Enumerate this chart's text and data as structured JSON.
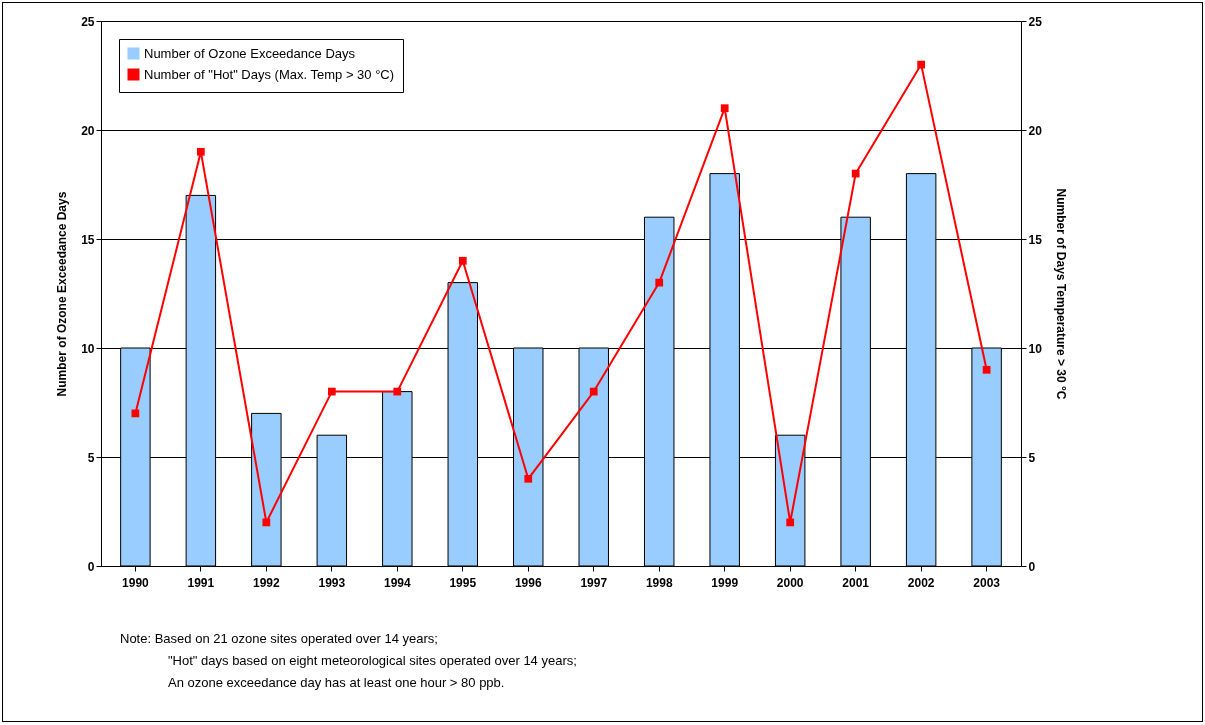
{
  "chart_data": {
    "type": "bar",
    "ylabel": "Number of Ozone Exceedance Days",
    "y2label": "Number of Days Temperature > 30 °C",
    "categories": [
      "1990",
      "1991",
      "1992",
      "1993",
      "1994",
      "1995",
      "1996",
      "1997",
      "1998",
      "1999",
      "2000",
      "2001",
      "2002",
      "2003"
    ],
    "series": [
      {
        "name": "Number of Ozone Exceedance Days",
        "color": "#99ccff",
        "values": [
          10,
          17,
          7,
          6,
          8,
          13,
          10,
          10,
          16,
          18,
          6,
          16,
          18,
          10
        ]
      },
      {
        "name": "Number of \"Hot\" Days (Max. Temp > 30 °C)",
        "color": "#ff0000",
        "type": "line",
        "axis": "y2",
        "values": [
          7,
          19,
          2,
          8,
          8,
          14,
          4,
          8,
          13,
          21,
          2,
          18,
          23,
          9
        ]
      }
    ],
    "ylim": [
      0,
      25
    ],
    "yticks": [
      0,
      5,
      10,
      15,
      20,
      25
    ],
    "y2lim": [
      0,
      25
    ],
    "y2ticks": [
      0,
      5,
      10,
      15,
      20,
      25
    ],
    "grid": "y",
    "legend": "top left",
    "marker": "square",
    "line_style": "solid",
    "annotations": [
      "Note:  Based on 21 ozone sites operated over 14 years;",
      "\"Hot\" days based on eight meteorological sites operated over 14 years;",
      "An ozone exceedance day has at least one hour > 80 ppb."
    ]
  }
}
